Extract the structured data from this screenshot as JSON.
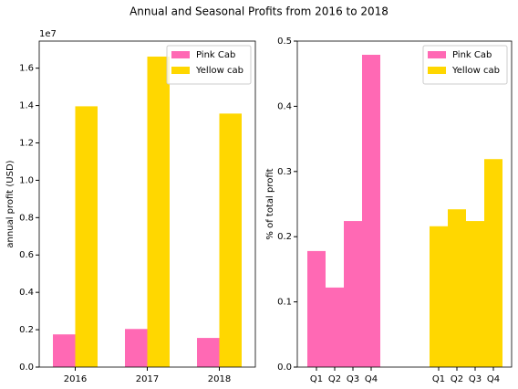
{
  "title": "Annual and Seasonal Profits from 2016 to 2018",
  "chart_data": [
    {
      "type": "bar",
      "ylabel": "annual profit (USD)",
      "offset_label": "1e7",
      "categories": [
        "2016",
        "2017",
        "2018"
      ],
      "series": [
        {
          "name": "Pink Cab",
          "color": "#ff69b4",
          "values": [
            1750000,
            2040000,
            1560000
          ]
        },
        {
          "name": "Yellow cab",
          "color": "#ffd700",
          "values": [
            13960000,
            16620000,
            13570000
          ]
        }
      ],
      "ylim": [
        0,
        17450000
      ],
      "yticks": [
        {
          "value": 0,
          "label": "0.0"
        },
        {
          "value": 2000000,
          "label": "0.2"
        },
        {
          "value": 4000000,
          "label": "0.4"
        },
        {
          "value": 6000000,
          "label": "0.6"
        },
        {
          "value": 8000000,
          "label": "0.8"
        },
        {
          "value": 10000000,
          "label": "1.0"
        },
        {
          "value": 12000000,
          "label": "1.2"
        },
        {
          "value": 14000000,
          "label": "1.4"
        },
        {
          "value": 16000000,
          "label": "1.6"
        }
      ],
      "legend": "upper right"
    },
    {
      "type": "bar",
      "ylabel": "% of total profit",
      "categories": [
        "Q1",
        "Q2",
        "Q3",
        "Q4"
      ],
      "series": [
        {
          "name": "Pink Cab",
          "color": "#ff69b4",
          "values": [
            0.178,
            0.122,
            0.224,
            0.479
          ]
        },
        {
          "name": "Yellow cab",
          "color": "#ffd700",
          "values": [
            0.216,
            0.242,
            0.224,
            0.319
          ]
        }
      ],
      "ylim": [
        0,
        0.5
      ],
      "yticks": [
        {
          "value": 0,
          "label": "0.0"
        },
        0.1,
        0.2,
        0.3,
        0.4,
        0.5
      ],
      "legend": "upper right"
    }
  ]
}
